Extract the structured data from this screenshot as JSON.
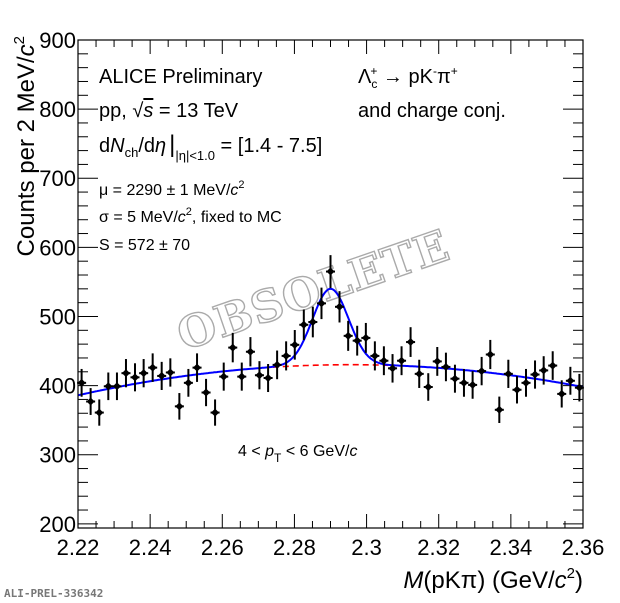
{
  "chart_data": {
    "type": "scatter",
    "xlabel_parts": [
      "M",
      "(pKπ) (GeV/",
      "c",
      "2",
      ")"
    ],
    "ylabel_parts": [
      "Counts per 2 MeV/",
      "c",
      "2"
    ],
    "xlim": [
      2.22,
      2.36
    ],
    "ylim": [
      194,
      900
    ],
    "x_ticks": [
      "2.22",
      "2.24",
      "2.26",
      "2.28",
      "2.3",
      "2.32",
      "2.34",
      "2.36"
    ],
    "y_ticks": [
      "200",
      "300",
      "400",
      "500",
      "600",
      "700",
      "800",
      "900"
    ],
    "grid": false,
    "series": [
      {
        "type": "points-with-errors",
        "color": "#000000",
        "x": [
          2.221,
          2.2235,
          2.2259,
          2.2284,
          2.2308,
          2.2333,
          2.2358,
          2.2382,
          2.2407,
          2.2432,
          2.2456,
          2.2481,
          2.2506,
          2.253,
          2.2555,
          2.258,
          2.2604,
          2.2629,
          2.2654,
          2.2678,
          2.2703,
          2.2727,
          2.2752,
          2.2777,
          2.2801,
          2.2826,
          2.2851,
          2.2875,
          2.29,
          2.2925,
          2.2949,
          2.2974,
          2.2998,
          2.3023,
          2.3048,
          2.3072,
          2.3097,
          2.3122,
          2.3146,
          2.3171,
          2.3196,
          2.322,
          2.3245,
          2.327,
          2.3294,
          2.3319,
          2.3343,
          2.3368,
          2.3393,
          2.3417,
          2.3442,
          2.3467,
          2.3491,
          2.3516,
          2.3541,
          2.3565,
          2.359
        ],
        "y": [
          404,
          377,
          361,
          399,
          399,
          418,
          412,
          418,
          426,
          414,
          419,
          370,
          404,
          426,
          390,
          361,
          413,
          455,
          413,
          449,
          415,
          411,
          430,
          443,
          459,
          488,
          492,
          519,
          565,
          514,
          472,
          465,
          469,
          443,
          436,
          425,
          436,
          463,
          417,
          398,
          435,
          427,
          410,
          404,
          401,
          421,
          445,
          365,
          417,
          394,
          404,
          416,
          422,
          429,
          388,
          407,
          397
        ]
      },
      {
        "type": "fit-total",
        "color": "#0000ff",
        "model": "gaussian + quadratic background",
        "gauss_mean": 2.29,
        "gauss_sigma": 0.005,
        "gauss_amplitude": 110,
        "background_at": {
          "x": [
            2.22,
            2.29,
            2.36
          ],
          "y": [
            386,
            430,
            398
          ]
        }
      },
      {
        "type": "fit-background",
        "color": "#ff0000",
        "style": "dashed",
        "x_range": [
          2.274,
          2.306
        ]
      }
    ]
  },
  "annotations": {
    "experiment": "ALICE Preliminary",
    "system": [
      "pp, ",
      "√",
      "s",
      " = 13 TeV"
    ],
    "multiplicity": [
      "d",
      "N",
      "ch",
      "/d",
      "η",
      "|",
      "|η|<1.0",
      " = [1.4 - 7.5]"
    ],
    "mu": [
      "μ = 2290 ± 1 MeV/",
      "c",
      "2"
    ],
    "sigma": [
      "σ = 5 MeV/",
      "c",
      "2",
      ", fixed to MC"
    ],
    "signal": "S = 572 ± 70",
    "decay": [
      "Λ",
      "c",
      "+",
      " → pK",
      "-",
      "π",
      "+"
    ],
    "charge_conj": "and charge conj.",
    "pt_range": [
      "4 < ",
      "p",
      "T",
      " < 6 GeV/",
      "c"
    ],
    "watermark": "OBSOLETE",
    "prelim_id": "ALI-PREL-336342"
  }
}
